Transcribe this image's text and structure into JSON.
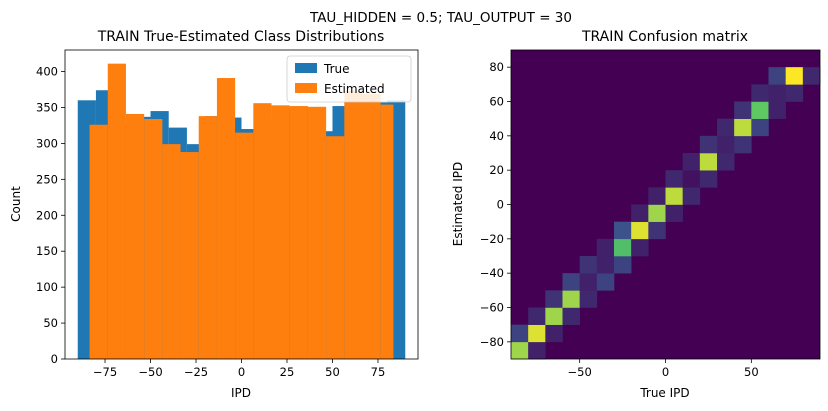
{
  "suptitle": "TAU_HIDDEN = 0.5; TAU_OUTPUT = 30",
  "chart_data": [
    {
      "type": "bar",
      "title": "TRAIN True-Estimated Class Distributions",
      "xlabel": "IPD",
      "ylabel": "Count",
      "xlim": [
        -97,
        97
      ],
      "ylim": [
        0,
        430
      ],
      "xticks": [
        -75,
        -50,
        -25,
        0,
        25,
        50,
        75
      ],
      "xtick_labels": [
        "−75",
        "−50",
        "−25",
        "0",
        "25",
        "50",
        "75"
      ],
      "yticks": [
        0,
        50,
        100,
        150,
        200,
        250,
        300,
        350,
        400
      ],
      "ytick_labels": [
        "0",
        "50",
        "100",
        "150",
        "200",
        "250",
        "300",
        "350",
        "400"
      ],
      "legend_position": "top-right",
      "series": [
        {
          "name": "True",
          "color": "#1f77b4",
          "bin_edges": [
            -90,
            -80,
            -70,
            -60,
            -50,
            -40,
            -30,
            -20,
            -10,
            0,
            10,
            20,
            30,
            40,
            50,
            60,
            70,
            80,
            90
          ],
          "values": [
            360,
            374,
            327,
            337,
            345,
            322,
            299,
            338,
            336,
            320,
            332,
            350,
            350,
            317,
            352,
            343,
            357,
            360
          ]
        },
        {
          "name": "Estimated",
          "color": "#ff7f0e",
          "bin_edges": [
            -83.5,
            -73.5,
            -63.5,
            -53.5,
            -43.5,
            -33.5,
            -23.5,
            -13.5,
            -3.5,
            6.5,
            16.5,
            26.5,
            36.5,
            46.5,
            56.5,
            66.5,
            76.5,
            83.5
          ],
          "values": [
            326,
            411,
            341,
            334,
            299,
            288,
            338,
            391,
            315,
            356,
            353,
            352,
            351,
            310,
            373,
            369,
            354
          ]
        }
      ]
    },
    {
      "type": "heatmap",
      "title": "TRAIN Confusion matrix",
      "xlabel": "True IPD",
      "ylabel": "Estimated IPD",
      "xlim": [
        -90,
        90
      ],
      "ylim": [
        -90,
        90
      ],
      "cell_size": 10,
      "xticks": [
        -50,
        0,
        50
      ],
      "xtick_labels": [
        "−50",
        "0",
        "50"
      ],
      "yticks": [
        -80,
        -60,
        -40,
        -20,
        0,
        20,
        40,
        60,
        80
      ],
      "ytick_labels": [
        "−80",
        "−60",
        "−40",
        "−20",
        "0",
        "20",
        "40",
        "60",
        "80"
      ],
      "cells": [
        {
          "x": -85,
          "y": -85,
          "v": 0.85
        },
        {
          "x": -85,
          "y": -75,
          "v": 0.2
        },
        {
          "x": -75,
          "y": -85,
          "v": 0.1
        },
        {
          "x": -75,
          "y": -75,
          "v": 0.95
        },
        {
          "x": -75,
          "y": -65,
          "v": 0.12
        },
        {
          "x": -65,
          "y": -75,
          "v": 0.1
        },
        {
          "x": -65,
          "y": -65,
          "v": 0.85
        },
        {
          "x": -65,
          "y": -55,
          "v": 0.15
        },
        {
          "x": -55,
          "y": -65,
          "v": 0.12
        },
        {
          "x": -55,
          "y": -55,
          "v": 0.85
        },
        {
          "x": -55,
          "y": -45,
          "v": 0.2
        },
        {
          "x": -45,
          "y": -55,
          "v": 0.12
        },
        {
          "x": -45,
          "y": -45,
          "v": 0.1
        },
        {
          "x": -45,
          "y": -35,
          "v": 0.15
        },
        {
          "x": -35,
          "y": -45,
          "v": 0.2
        },
        {
          "x": -35,
          "y": -35,
          "v": 0.1
        },
        {
          "x": -35,
          "y": -25,
          "v": 0.1
        },
        {
          "x": -25,
          "y": -35,
          "v": 0.2
        },
        {
          "x": -25,
          "y": -25,
          "v": 0.7
        },
        {
          "x": -25,
          "y": -15,
          "v": 0.25
        },
        {
          "x": -15,
          "y": -25,
          "v": 0.1
        },
        {
          "x": -15,
          "y": -15,
          "v": 0.95
        },
        {
          "x": -15,
          "y": -5,
          "v": 0.1
        },
        {
          "x": -5,
          "y": -15,
          "v": 0.15
        },
        {
          "x": -5,
          "y": -5,
          "v": 0.85
        },
        {
          "x": -5,
          "y": 5,
          "v": 0.1
        },
        {
          "x": 5,
          "y": -5,
          "v": 0.1
        },
        {
          "x": 5,
          "y": 5,
          "v": 0.9
        },
        {
          "x": 5,
          "y": 15,
          "v": 0.12
        },
        {
          "x": 15,
          "y": 5,
          "v": 0.12
        },
        {
          "x": 15,
          "y": 15,
          "v": 0.05
        },
        {
          "x": 15,
          "y": 25,
          "v": 0.1
        },
        {
          "x": 25,
          "y": 15,
          "v": 0.12
        },
        {
          "x": 25,
          "y": 25,
          "v": 0.9
        },
        {
          "x": 25,
          "y": 35,
          "v": 0.15
        },
        {
          "x": 35,
          "y": 25,
          "v": 0.12
        },
        {
          "x": 35,
          "y": 35,
          "v": 0.1
        },
        {
          "x": 35,
          "y": 45,
          "v": 0.12
        },
        {
          "x": 45,
          "y": 35,
          "v": 0.15
        },
        {
          "x": 45,
          "y": 45,
          "v": 0.9
        },
        {
          "x": 45,
          "y": 55,
          "v": 0.15
        },
        {
          "x": 55,
          "y": 45,
          "v": 0.2
        },
        {
          "x": 55,
          "y": 55,
          "v": 0.75
        },
        {
          "x": 55,
          "y": 65,
          "v": 0.12
        },
        {
          "x": 65,
          "y": 55,
          "v": 0.1
        },
        {
          "x": 65,
          "y": 65,
          "v": 0.1
        },
        {
          "x": 65,
          "y": 75,
          "v": 0.2
        },
        {
          "x": 75,
          "y": 65,
          "v": 0.12
        },
        {
          "x": 75,
          "y": 75,
          "v": 1.0
        },
        {
          "x": 85,
          "y": 75,
          "v": 0.12
        }
      ]
    }
  ]
}
